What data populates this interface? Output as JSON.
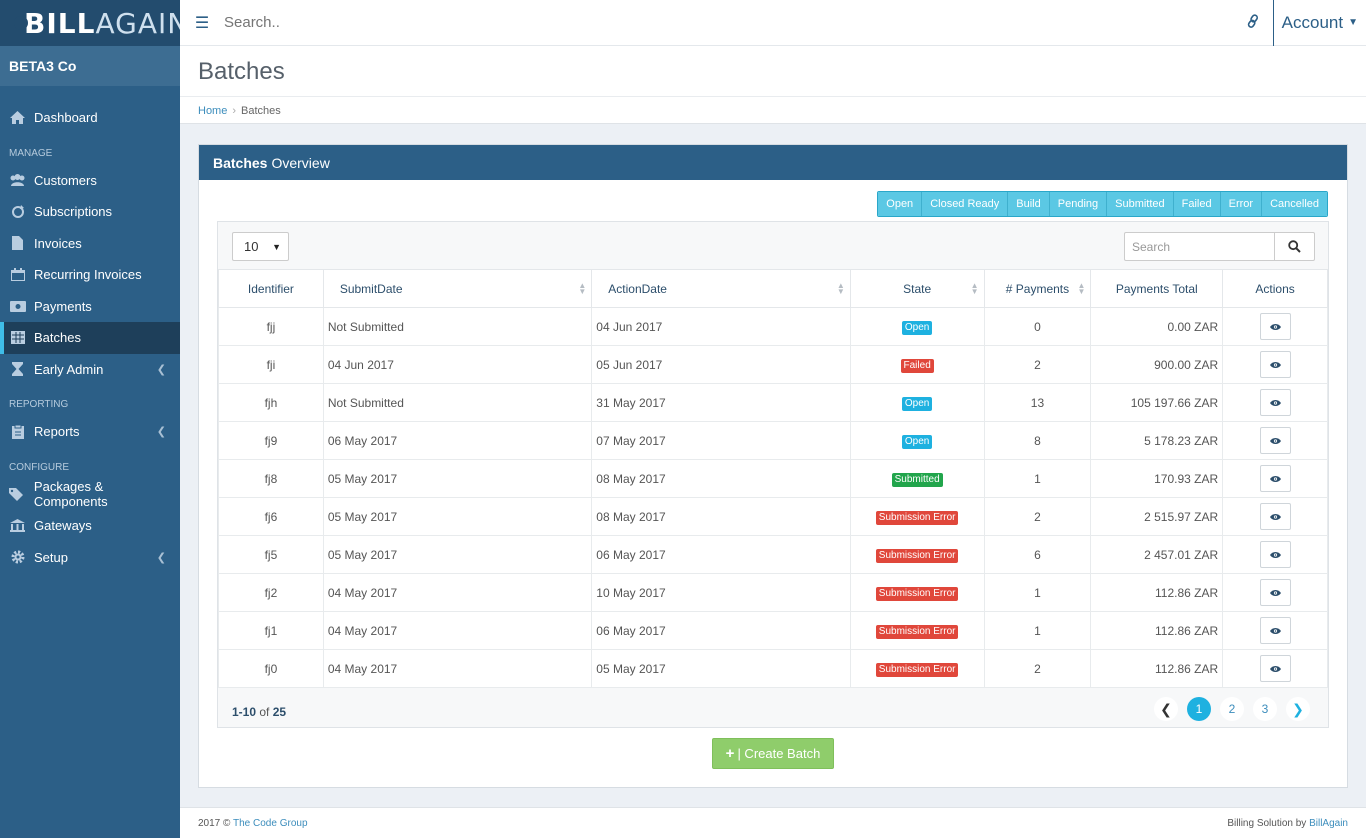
{
  "brand": {
    "name_bold": "BILL",
    "name_light": "AGAIN"
  },
  "company": "BETA3 Co",
  "topbar": {
    "search_placeholder": "Search..",
    "account_label": "Account"
  },
  "sidebar": {
    "dashboard": "Dashboard",
    "manage_header": "MANAGE",
    "customers": "Customers",
    "subscriptions": "Subscriptions",
    "invoices": "Invoices",
    "recurring_invoices": "Recurring Invoices",
    "payments": "Payments",
    "batches": "Batches",
    "early_admin": "Early Admin",
    "reporting_header": "REPORTING",
    "reports": "Reports",
    "configure_header": "CONFIGURE",
    "packages": "Packages & Components",
    "gateways": "Gateways",
    "setup": "Setup"
  },
  "page": {
    "title": "Batches",
    "breadcrumb_home": "Home",
    "breadcrumb_current": "Batches"
  },
  "box": {
    "title_bold": "Batches",
    "title_rest": "Overview",
    "filters": [
      "Open",
      "Closed Ready",
      "Build",
      "Pending",
      "Submitted",
      "Failed",
      "Error",
      "Cancelled"
    ]
  },
  "table": {
    "page_length": "10",
    "search_placeholder": "Search",
    "headers": {
      "identifier": "Identifier",
      "submit_date": "SubmitDate",
      "action_date": "ActionDate",
      "state": "State",
      "payments": "# Payments",
      "total": "Payments Total",
      "actions": "Actions"
    },
    "rows": [
      {
        "id": "fjj",
        "submit": "Not Submitted",
        "action": "04 Jun 2017",
        "state": "Open",
        "state_color": "#1eb1e0",
        "payments": "0",
        "total": "0.00 ZAR"
      },
      {
        "id": "fji",
        "submit": "04 Jun 2017",
        "action": "05 Jun 2017",
        "state": "Failed",
        "state_color": "#e0473b",
        "payments": "2",
        "total": "900.00 ZAR"
      },
      {
        "id": "fjh",
        "submit": "Not Submitted",
        "action": "31 May 2017",
        "state": "Open",
        "state_color": "#1eb1e0",
        "payments": "13",
        "total": "105 197.66 ZAR"
      },
      {
        "id": "fj9",
        "submit": "06 May 2017",
        "action": "07 May 2017",
        "state": "Open",
        "state_color": "#1eb1e0",
        "payments": "8",
        "total": "5 178.23 ZAR"
      },
      {
        "id": "fj8",
        "submit": "05 May 2017",
        "action": "08 May 2017",
        "state": "Submitted",
        "state_color": "#22a54c",
        "payments": "1",
        "total": "170.93 ZAR"
      },
      {
        "id": "fj6",
        "submit": "05 May 2017",
        "action": "08 May 2017",
        "state": "Submission Error",
        "state_color": "#e0473b",
        "payments": "2",
        "total": "2 515.97 ZAR"
      },
      {
        "id": "fj5",
        "submit": "05 May 2017",
        "action": "06 May 2017",
        "state": "Submission Error",
        "state_color": "#e0473b",
        "payments": "6",
        "total": "2 457.01 ZAR"
      },
      {
        "id": "fj2",
        "submit": "04 May 2017",
        "action": "10 May 2017",
        "state": "Submission Error",
        "state_color": "#e0473b",
        "payments": "1",
        "total": "112.86 ZAR"
      },
      {
        "id": "fj1",
        "submit": "04 May 2017",
        "action": "06 May 2017",
        "state": "Submission Error",
        "state_color": "#e0473b",
        "payments": "1",
        "total": "112.86 ZAR"
      },
      {
        "id": "fj0",
        "submit": "04 May 2017",
        "action": "05 May 2017",
        "state": "Submission Error",
        "state_color": "#e0473b",
        "payments": "2",
        "total": "112.86 ZAR"
      }
    ],
    "info_range": "1-10",
    "info_of": "of",
    "info_total": "25",
    "pages": [
      "1",
      "2",
      "3"
    ],
    "current_page": "1"
  },
  "create_button": "| Create Batch",
  "footer": {
    "copyright": "2017 ©",
    "company_link": "The Code Group",
    "right_text": "Billing Solution by",
    "right_link": "BillAgain"
  }
}
